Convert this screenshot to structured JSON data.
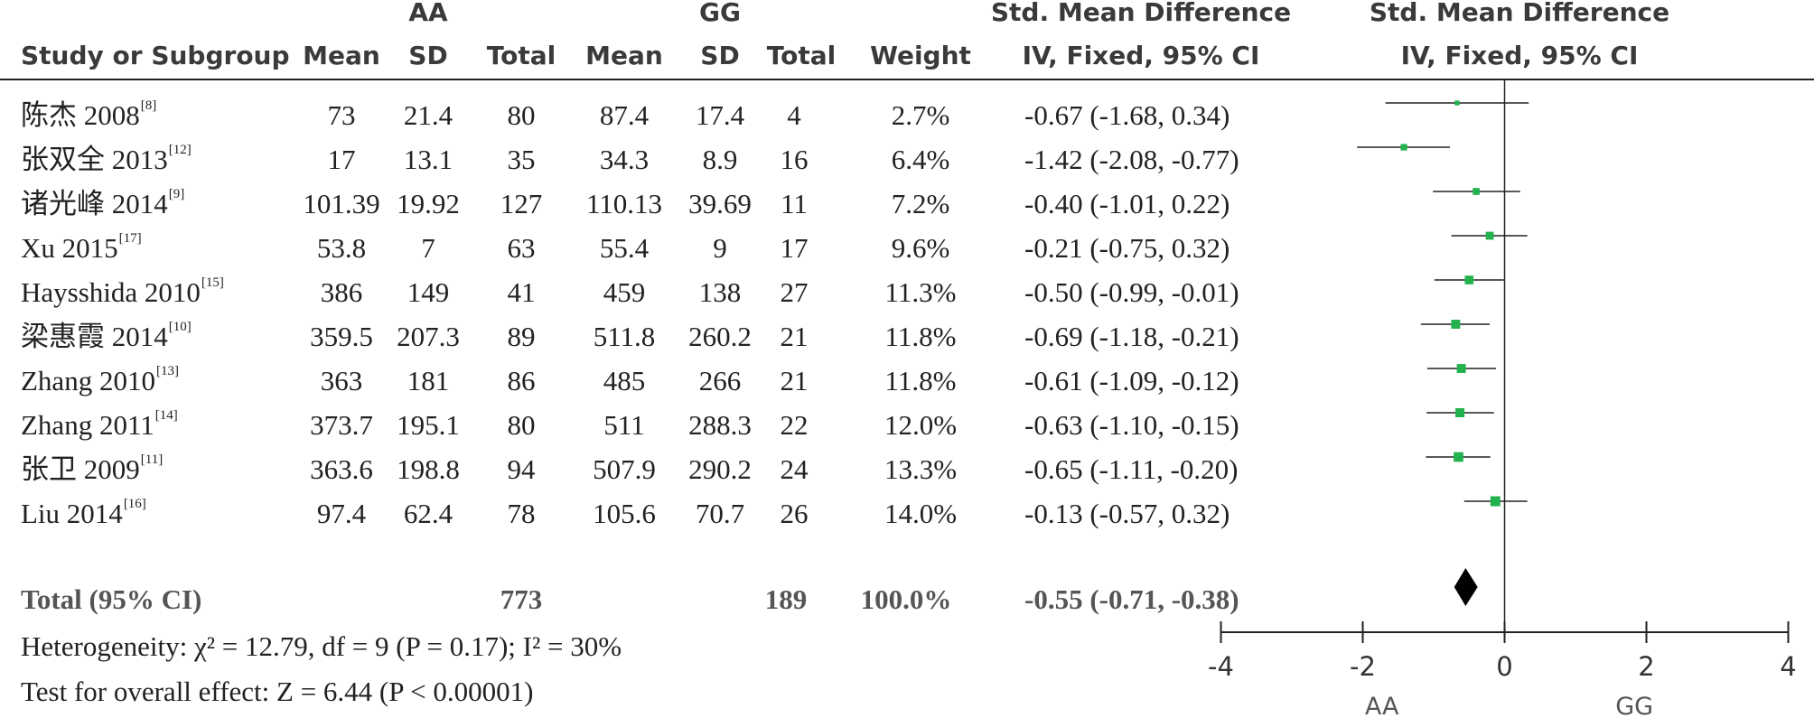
{
  "header": {
    "group_a": "AA",
    "group_b": "GG",
    "col_study": "Study or Subgroup",
    "col_mean": "Mean",
    "col_sd": "SD",
    "col_total": "Total",
    "col_weight": "Weight",
    "effect_title": "Std. Mean Difference",
    "effect_method": "IV, Fixed, 95% CI",
    "plot_title": "Std. Mean Difference",
    "plot_method": "IV, Fixed, 95% CI"
  },
  "rows": [
    {
      "study": "陈杰 2008",
      "ref": "[8]",
      "a_mean": "73",
      "a_sd": "21.4",
      "a_total": "80",
      "b_mean": "87.4",
      "b_sd": "17.4",
      "b_total": "4",
      "weight": "2.7%",
      "ci_text": "-0.67 (-1.68, 0.34)"
    },
    {
      "study": "张双全 2013",
      "ref": "[12]",
      "a_mean": "17",
      "a_sd": "13.1",
      "a_total": "35",
      "b_mean": "34.3",
      "b_sd": "8.9",
      "b_total": "16",
      "weight": "6.4%",
      "ci_text": "-1.42 (-2.08, -0.77)"
    },
    {
      "study": "诸光峰 2014",
      "ref": "[9]",
      "a_mean": "101.39",
      "a_sd": "19.92",
      "a_total": "127",
      "b_mean": "110.13",
      "b_sd": "39.69",
      "b_total": "11",
      "weight": "7.2%",
      "ci_text": "-0.40 (-1.01, 0.22)"
    },
    {
      "study": "Xu 2015",
      "ref": "[17]",
      "a_mean": "53.8",
      "a_sd": "7",
      "a_total": "63",
      "b_mean": "55.4",
      "b_sd": "9",
      "b_total": "17",
      "weight": "9.6%",
      "ci_text": "-0.21 (-0.75, 0.32)"
    },
    {
      "study": "Haysshida 2010",
      "ref": "[15]",
      "a_mean": "386",
      "a_sd": "149",
      "a_total": "41",
      "b_mean": "459",
      "b_sd": "138",
      "b_total": "27",
      "weight": "11.3%",
      "ci_text": "-0.50 (-0.99, -0.01)"
    },
    {
      "study": "梁惠霞 2014",
      "ref": "[10]",
      "a_mean": "359.5",
      "a_sd": "207.3",
      "a_total": "89",
      "b_mean": "511.8",
      "b_sd": "260.2",
      "b_total": "21",
      "weight": "11.8%",
      "ci_text": "-0.69 (-1.18, -0.21)"
    },
    {
      "study": "Zhang 2010",
      "ref": "[13]",
      "a_mean": "363",
      "a_sd": "181",
      "a_total": "86",
      "b_mean": "485",
      "b_sd": "266",
      "b_total": "21",
      "weight": "11.8%",
      "ci_text": "-0.61 (-1.09, -0.12)"
    },
    {
      "study": "Zhang 2011",
      "ref": "[14]",
      "a_mean": "373.7",
      "a_sd": "195.1",
      "a_total": "80",
      "b_mean": "511",
      "b_sd": "288.3",
      "b_total": "22",
      "weight": "12.0%",
      "ci_text": "-0.63 (-1.10, -0.15)"
    },
    {
      "study": "张卫 2009",
      "ref": "[11]",
      "a_mean": "363.6",
      "a_sd": "198.8",
      "a_total": "94",
      "b_mean": "507.9",
      "b_sd": "290.2",
      "b_total": "24",
      "weight": "13.3%",
      "ci_text": "-0.65 (-1.11, -0.20)"
    },
    {
      "study": "Liu 2014",
      "ref": "[16]",
      "a_mean": "97.4",
      "a_sd": "62.4",
      "a_total": "78",
      "b_mean": "105.6",
      "b_sd": "70.7",
      "b_total": "26",
      "weight": "14.0%",
      "ci_text": "-0.13 (-0.57, 0.32)"
    }
  ],
  "total": {
    "label": "Total (95% CI)",
    "a_total": "773",
    "b_total": "189",
    "weight": "100.0%",
    "ci_text": "-0.55 (-0.71, -0.38)"
  },
  "footer": {
    "heterogeneity": "Heterogeneity: χ² = 12.79, df = 9 (P = 0.17); I² = 30%",
    "overall_effect": "Test for overall effect: Z = 6.44 (P < 0.00001)"
  },
  "colors": {
    "marker": "#22b14c",
    "diamond": "#000000",
    "line": "#222222"
  },
  "chart_data": {
    "type": "forest",
    "x_ticks": [
      "-4",
      "-2",
      "0",
      "2",
      "4"
    ],
    "xlim": [
      -4,
      4
    ],
    "favours_left": "AA",
    "favours_right": "GG",
    "studies": [
      {
        "name": "陈杰 2008",
        "estimate": -0.67,
        "lower": -1.68,
        "upper": 0.34,
        "weight": 2.7
      },
      {
        "name": "张双全 2013",
        "estimate": -1.42,
        "lower": -2.08,
        "upper": -0.77,
        "weight": 6.4
      },
      {
        "name": "诸光峰 2014",
        "estimate": -0.4,
        "lower": -1.01,
        "upper": 0.22,
        "weight": 7.2
      },
      {
        "name": "Xu 2015",
        "estimate": -0.21,
        "lower": -0.75,
        "upper": 0.32,
        "weight": 9.6
      },
      {
        "name": "Haysshida 2010",
        "estimate": -0.5,
        "lower": -0.99,
        "upper": -0.01,
        "weight": 11.3
      },
      {
        "name": "梁惠霞 2014",
        "estimate": -0.69,
        "lower": -1.18,
        "upper": -0.21,
        "weight": 11.8
      },
      {
        "name": "Zhang 2010",
        "estimate": -0.61,
        "lower": -1.09,
        "upper": -0.12,
        "weight": 11.8
      },
      {
        "name": "Zhang 2011",
        "estimate": -0.63,
        "lower": -1.1,
        "upper": -0.15,
        "weight": 12.0
      },
      {
        "name": "张卫 2009",
        "estimate": -0.65,
        "lower": -1.11,
        "upper": -0.2,
        "weight": 13.3
      },
      {
        "name": "Liu 2014",
        "estimate": -0.13,
        "lower": -0.57,
        "upper": 0.32,
        "weight": 14.0
      }
    ],
    "pooled": {
      "estimate": -0.55,
      "lower": -0.71,
      "upper": -0.38
    }
  }
}
